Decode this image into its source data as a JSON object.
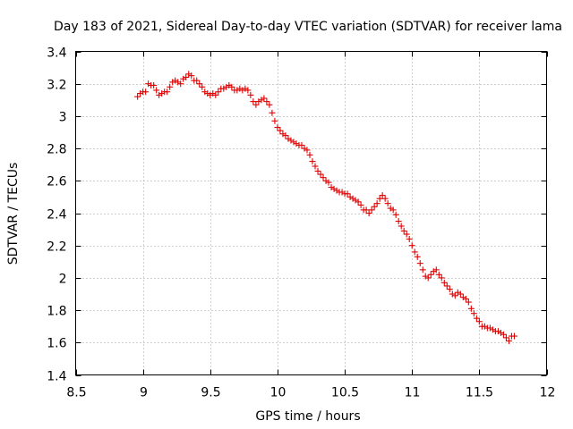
{
  "chart_data": {
    "type": "scatter",
    "title": "Day 183 of 2021, Sidereal Day-to-day VTEC variation (SDTVAR) for receiver lama",
    "xlabel": "GPS time / hours",
    "ylabel": "SDTVAR / TECUs",
    "xlim": [
      8.5,
      12
    ],
    "ylim": [
      1.4,
      3.4
    ],
    "xticks": [
      "8.5",
      "9",
      "9.5",
      "10",
      "10.5",
      "11",
      "11.5",
      "12"
    ],
    "yticks": [
      "1.4",
      "1.6",
      "1.8",
      "2",
      "2.2",
      "2.4",
      "2.6",
      "2.8",
      "3",
      "3.2",
      "3.4"
    ],
    "grid": true,
    "marker": "plus",
    "color": "#e00000",
    "series": [
      {
        "name": "SDTVAR",
        "x": [
          8.96,
          8.98,
          9.0,
          9.02,
          9.04,
          9.06,
          9.08,
          9.1,
          9.12,
          9.14,
          9.16,
          9.18,
          9.2,
          9.22,
          9.24,
          9.26,
          9.28,
          9.3,
          9.32,
          9.34,
          9.36,
          9.38,
          9.4,
          9.42,
          9.44,
          9.46,
          9.48,
          9.5,
          9.52,
          9.54,
          9.56,
          9.58,
          9.6,
          9.62,
          9.64,
          9.66,
          9.68,
          9.7,
          9.72,
          9.74,
          9.76,
          9.78,
          9.8,
          9.82,
          9.84,
          9.86,
          9.88,
          9.9,
          9.92,
          9.94,
          9.96,
          9.98,
          10.0,
          10.02,
          10.04,
          10.06,
          10.08,
          10.1,
          10.12,
          10.14,
          10.16,
          10.18,
          10.2,
          10.22,
          10.24,
          10.26,
          10.28,
          10.3,
          10.32,
          10.34,
          10.36,
          10.38,
          10.4,
          10.42,
          10.44,
          10.46,
          10.48,
          10.5,
          10.52,
          10.54,
          10.56,
          10.58,
          10.6,
          10.62,
          10.64,
          10.66,
          10.68,
          10.7,
          10.72,
          10.74,
          10.76,
          10.78,
          10.8,
          10.82,
          10.84,
          10.86,
          10.88,
          10.9,
          10.92,
          10.94,
          10.96,
          10.98,
          11.0,
          11.02,
          11.04,
          11.06,
          11.08,
          11.1,
          11.12,
          11.14,
          11.16,
          11.18,
          11.2,
          11.22,
          11.24,
          11.26,
          11.28,
          11.3,
          11.32,
          11.34,
          11.36,
          11.38,
          11.4,
          11.42,
          11.44,
          11.46,
          11.48,
          11.5,
          11.52,
          11.54,
          11.56,
          11.58,
          11.6,
          11.62,
          11.64,
          11.66,
          11.68,
          11.7,
          11.72,
          11.74,
          11.76
        ],
        "y": [
          3.12,
          3.14,
          3.15,
          3.15,
          3.2,
          3.19,
          3.19,
          3.16,
          3.13,
          3.14,
          3.15,
          3.15,
          3.18,
          3.21,
          3.22,
          3.21,
          3.2,
          3.23,
          3.24,
          3.26,
          3.25,
          3.22,
          3.22,
          3.2,
          3.18,
          3.15,
          3.14,
          3.13,
          3.14,
          3.13,
          3.15,
          3.17,
          3.17,
          3.18,
          3.19,
          3.18,
          3.16,
          3.16,
          3.17,
          3.16,
          3.17,
          3.16,
          3.13,
          3.09,
          3.07,
          3.09,
          3.1,
          3.11,
          3.09,
          3.07,
          3.02,
          2.97,
          2.93,
          2.91,
          2.89,
          2.88,
          2.86,
          2.85,
          2.84,
          2.83,
          2.82,
          2.82,
          2.8,
          2.79,
          2.76,
          2.72,
          2.69,
          2.66,
          2.64,
          2.62,
          2.6,
          2.59,
          2.56,
          2.55,
          2.54,
          2.53,
          2.53,
          2.52,
          2.52,
          2.5,
          2.49,
          2.48,
          2.47,
          2.45,
          2.42,
          2.42,
          2.4,
          2.42,
          2.44,
          2.46,
          2.49,
          2.51,
          2.49,
          2.46,
          2.43,
          2.42,
          2.39,
          2.35,
          2.32,
          2.29,
          2.27,
          2.24,
          2.2,
          2.16,
          2.13,
          2.09,
          2.05,
          2.01,
          2.0,
          2.02,
          2.04,
          2.05,
          2.02,
          2.0,
          1.97,
          1.95,
          1.93,
          1.9,
          1.89,
          1.91,
          1.9,
          1.88,
          1.87,
          1.85,
          1.81,
          1.78,
          1.75,
          1.73,
          1.7,
          1.7,
          1.69,
          1.69,
          1.68,
          1.67,
          1.67,
          1.66,
          1.65,
          1.63,
          1.61,
          1.64,
          1.64
        ]
      }
    ]
  }
}
